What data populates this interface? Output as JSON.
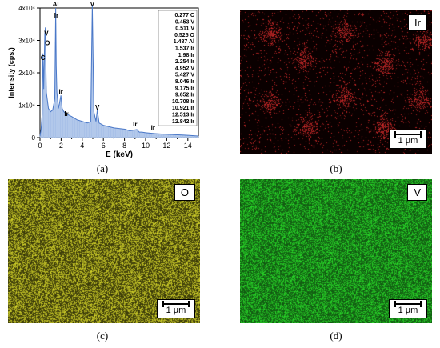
{
  "captions": {
    "a": "(a)",
    "b": "(b)",
    "c": "(c)",
    "d": "(d)"
  },
  "maps": [
    {
      "id": "b",
      "element": "Ir",
      "scale": "1 µm",
      "color": "#d42a2a",
      "background": "#0a0000",
      "pattern": "clusters"
    },
    {
      "id": "c",
      "element": "O",
      "scale": "1 µm",
      "color": "#d8d82a",
      "background": "#2a2a06",
      "pattern": "uniform"
    },
    {
      "id": "d",
      "element": "V",
      "scale": "1 µm",
      "color": "#2adf2a",
      "background": "#0f4a0f",
      "pattern": "uniform"
    }
  ],
  "chart_data": {
    "type": "line",
    "title": "",
    "xlabel": "E (keV)",
    "ylabel": "Intensity (cps.)",
    "xlim": [
      0,
      15
    ],
    "ylim": [
      0,
      40000
    ],
    "xticks": [
      "0",
      "2",
      "4",
      "6",
      "8",
      "10",
      "12",
      "14"
    ],
    "yticks": [
      "0",
      "1x10⁴",
      "2x10⁴",
      "3x10⁴",
      "4x10⁴"
    ],
    "series": [
      {
        "x": [
          0.0,
          0.1,
          0.2,
          0.277,
          0.35,
          0.453,
          0.511,
          0.525,
          0.6,
          0.8,
          1.0,
          1.2,
          1.4,
          1.487,
          1.537,
          1.6,
          1.75,
          1.98,
          2.1,
          2.254,
          2.4,
          2.7,
          3.0,
          3.5,
          4.0,
          4.5,
          4.8,
          4.952,
          5.1,
          5.3,
          5.427,
          5.6,
          6.0,
          7.0,
          8.046,
          8.5,
          9.175,
          9.4,
          9.652,
          10.0,
          10.708,
          10.921,
          11.5,
          12.513,
          12.842,
          13.5,
          14.0,
          15.0
        ],
        "y": [
          500,
          2500,
          7000,
          26000,
          15000,
          32000,
          34000,
          30000,
          14000,
          9000,
          8000,
          8500,
          12000,
          40000,
          22000,
          14000,
          9000,
          13000,
          9000,
          8000,
          7500,
          7000,
          6500,
          5500,
          5000,
          4500,
          5000,
          41000,
          8000,
          5000,
          8500,
          4500,
          3800,
          3000,
          2600,
          2100,
          2500,
          1700,
          1700,
          1500,
          1300,
          1250,
          1100,
          950,
          900,
          800,
          700,
          500
        ]
      }
    ],
    "peak_labels": [
      {
        "text": "C",
        "x": 0.277,
        "y": 24000
      },
      {
        "text": "O",
        "x": 0.7,
        "y": 28500
      },
      {
        "text": "V",
        "x": 0.6,
        "y": 31500
      },
      {
        "text": "Al",
        "x": 1.487,
        "y": 40500
      },
      {
        "text": "Ir",
        "x": 1.55,
        "y": 37000
      },
      {
        "text": "V",
        "x": 4.952,
        "y": 40500
      },
      {
        "text": "Ir",
        "x": 1.98,
        "y": 13500
      },
      {
        "text": "Ir",
        "x": 2.5,
        "y": 6700
      },
      {
        "text": "V",
        "x": 5.427,
        "y": 8700
      },
      {
        "text": "Ir",
        "x": 9.0,
        "y": 3400
      },
      {
        "text": "Ir",
        "x": 10.7,
        "y": 2400
      }
    ],
    "legend": [
      "0.277 C",
      "0.453 V",
      "0.511 V",
      "0.525 O",
      "1.487 Al",
      "1.537 Ir",
      "1.98 Ir",
      "2.254 Ir",
      "4.952 V",
      "5.427 V",
      "8.046 Ir",
      "9.175 Ir",
      "9.652 Ir",
      "10.708 Ir",
      "10.921 Ir",
      "12.513 Ir",
      "12.842 Ir"
    ]
  }
}
